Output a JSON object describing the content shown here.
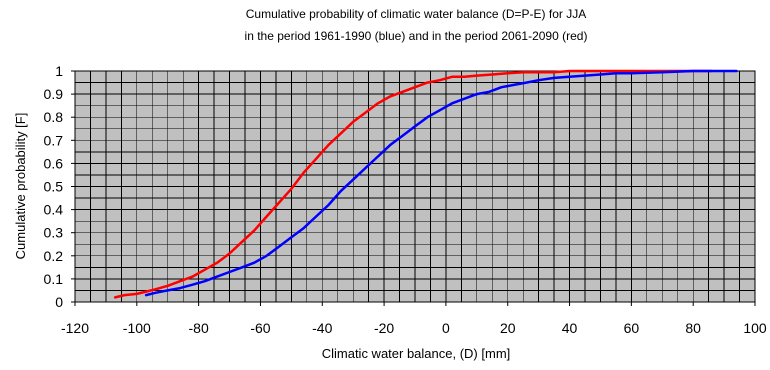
{
  "chart_data": {
    "type": "line",
    "title_lines": [
      "Cumulative probability of climatic water balance (D=P-E) for JJA",
      "in the period 1961-1990 (blue) and in the period 2061-2090 (red)"
    ],
    "xlabel": "Climatic water balance, (D) [mm]",
    "ylabel": "Cumulative probability [F]",
    "xlim": [
      -120,
      100
    ],
    "ylim": [
      0,
      1
    ],
    "x_ticks": [
      "-120",
      "-100",
      "-80",
      "-60",
      "-40",
      "-20",
      "0",
      "20",
      "40",
      "60",
      "80",
      "100"
    ],
    "y_ticks": [
      "0",
      "0.1",
      "0.2",
      "0.3",
      "0.4",
      "0.5",
      "0.6",
      "0.7",
      "0.8",
      "0.9",
      "1"
    ],
    "grid": true,
    "legend": "none",
    "series": [
      {
        "color": "#ff0000",
        "x": [
          -107,
          -104,
          -100,
          -97,
          -94,
          -90,
          -86,
          -82,
          -78,
          -74,
          -70,
          -66,
          -62,
          -58,
          -54,
          -50,
          -46,
          -42,
          -38,
          -34,
          -30,
          -26,
          -22,
          -18,
          -14,
          -10,
          -6,
          -2,
          2,
          6,
          10,
          15,
          20,
          25,
          30,
          35,
          40,
          50,
          60,
          70,
          80,
          86
        ],
        "y": [
          0.02,
          0.03,
          0.035,
          0.045,
          0.055,
          0.07,
          0.09,
          0.11,
          0.14,
          0.17,
          0.21,
          0.26,
          0.31,
          0.37,
          0.43,
          0.49,
          0.56,
          0.62,
          0.68,
          0.73,
          0.78,
          0.82,
          0.86,
          0.89,
          0.91,
          0.93,
          0.95,
          0.96,
          0.975,
          0.975,
          0.98,
          0.985,
          0.99,
          0.995,
          0.995,
          0.995,
          1.0,
          1.0,
          1.0,
          1.0,
          1.0,
          1.0
        ]
      },
      {
        "color": "#0000ff",
        "x": [
          -97,
          -94,
          -90,
          -86,
          -82,
          -78,
          -74,
          -70,
          -66,
          -62,
          -58,
          -54,
          -50,
          -46,
          -42,
          -38,
          -34,
          -30,
          -26,
          -22,
          -18,
          -14,
          -10,
          -6,
          -2,
          2,
          6,
          10,
          14,
          18,
          22,
          26,
          30,
          35,
          40,
          45,
          50,
          55,
          60,
          70,
          80,
          90,
          94
        ],
        "y": [
          0.03,
          0.04,
          0.05,
          0.06,
          0.075,
          0.09,
          0.11,
          0.13,
          0.15,
          0.17,
          0.2,
          0.24,
          0.28,
          0.32,
          0.37,
          0.42,
          0.48,
          0.53,
          0.58,
          0.63,
          0.68,
          0.72,
          0.76,
          0.8,
          0.83,
          0.86,
          0.88,
          0.9,
          0.91,
          0.93,
          0.94,
          0.95,
          0.96,
          0.97,
          0.975,
          0.98,
          0.985,
          0.99,
          0.99,
          0.995,
          1.0,
          1.0,
          1.0
        ]
      }
    ]
  }
}
